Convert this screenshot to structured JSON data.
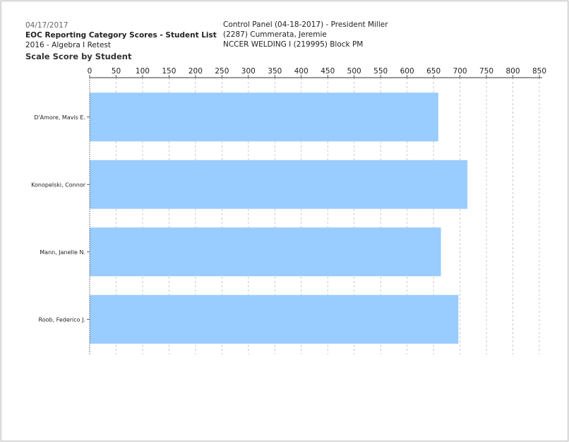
{
  "header": {
    "date": "04/17/2017",
    "report_title": "EOC Reporting Category Scores - Student List",
    "test_name": "2016 - Algebra I Retest",
    "control_panel": "Control Panel (04-18-2017) - President Miller",
    "teacher": "(2287) Cummerata, Jeremie",
    "course": "NCCER WELDING I (219995) Block PM"
  },
  "chart_data": {
    "type": "bar",
    "orientation": "horizontal",
    "title": "Scale Score by Student",
    "categories": [
      "D'Amore, Mavis E.",
      "Konopelski, Connor",
      "Mann, Janelle N.",
      "Roob, Federico J."
    ],
    "values": [
      659,
      714,
      664,
      697
    ],
    "xlim": [
      0,
      850
    ],
    "xticks": [
      0,
      50,
      100,
      150,
      200,
      250,
      300,
      350,
      400,
      450,
      500,
      550,
      600,
      650,
      700,
      750,
      800,
      850
    ],
    "grid": true,
    "axis_position": "top",
    "bar_color": "#99ccff",
    "grid_color": "#bbbbbb"
  }
}
